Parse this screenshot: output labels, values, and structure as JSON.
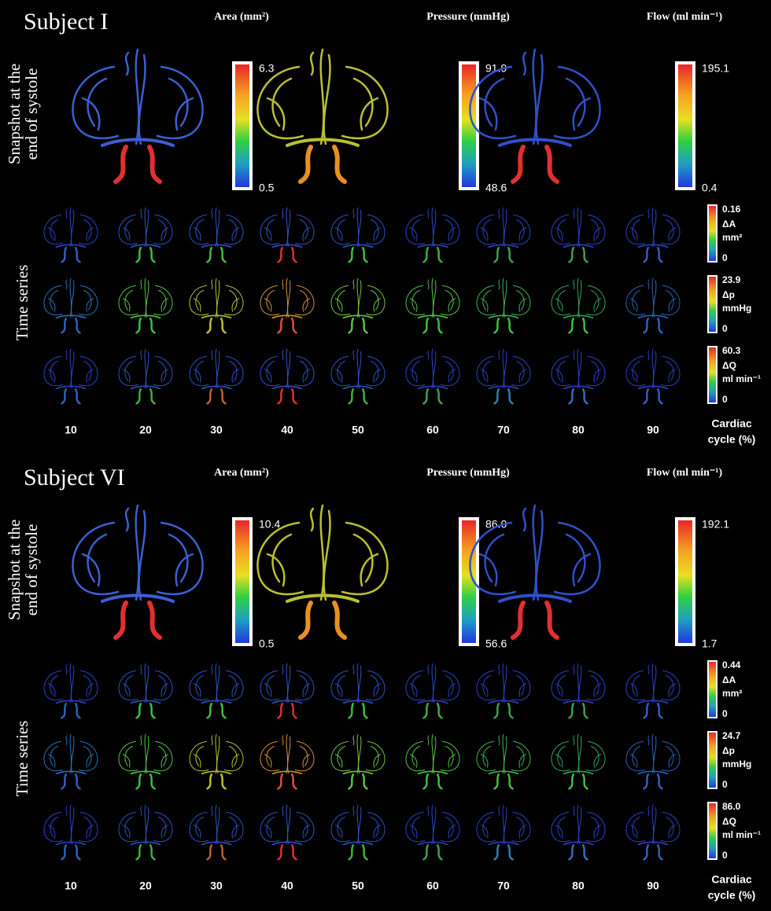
{
  "subjects": [
    {
      "title": "Subject I",
      "snapshot_label": [
        "Snapshot at the",
        "end of systole"
      ],
      "time_series_label": "Time series",
      "snapshot_bars": [
        {
          "label": "Area (mm²)",
          "max": "6.3",
          "min": "0.5"
        },
        {
          "label": "Pressure (mmHg)",
          "max": "91.9",
          "min": "48.6"
        },
        {
          "label": "Flow (ml min⁻¹)",
          "max": "195.1",
          "min": "0.4"
        }
      ],
      "series_bars": [
        {
          "max": "0.16",
          "label": [
            "ΔA",
            "mm²"
          ],
          "min": "0"
        },
        {
          "max": "23.9",
          "label": [
            "Δp",
            "mmHg"
          ],
          "min": "0"
        },
        {
          "max": "60.3",
          "label": [
            "ΔQ",
            "ml min⁻¹"
          ],
          "min": "0"
        }
      ],
      "cycle_ticks": [
        "10",
        "20",
        "30",
        "40",
        "50",
        "60",
        "70",
        "80",
        "90"
      ],
      "cycle_label": [
        "Cardiac",
        "cycle (%)"
      ]
    },
    {
      "title": "Subject VI",
      "snapshot_label": [
        "Snapshot at the",
        "end of systole"
      ],
      "time_series_label": "Time series",
      "snapshot_bars": [
        {
          "label": "Area (mm²)",
          "max": "10.4",
          "min": "0.5"
        },
        {
          "label": "Pressure (mmHg)",
          "max": "86.0",
          "min": "56.6"
        },
        {
          "label": "Flow (ml min⁻¹)",
          "max": "192.1",
          "min": "1.7"
        }
      ],
      "series_bars": [
        {
          "max": "0.44",
          "label": [
            "ΔA",
            "mm²"
          ],
          "min": "0"
        },
        {
          "max": "24.7",
          "label": [
            "Δp",
            "mmHg"
          ],
          "min": "0"
        },
        {
          "max": "86.0",
          "label": [
            "ΔQ",
            "ml min⁻¹"
          ],
          "min": "0"
        }
      ],
      "cycle_ticks": [
        "10",
        "20",
        "30",
        "40",
        "50",
        "60",
        "70",
        "80",
        "90"
      ],
      "cycle_label": [
        "Cardiac",
        "cycle (%)"
      ]
    }
  ]
}
